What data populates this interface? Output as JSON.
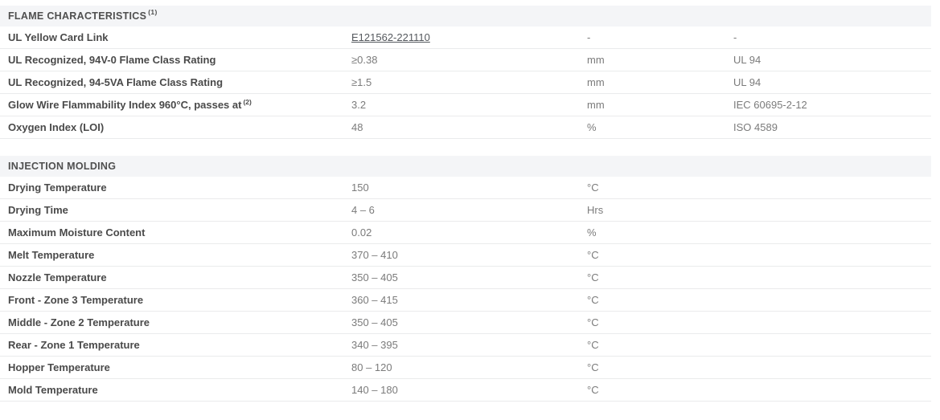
{
  "colors": {
    "section_header_bg": "#f4f5f7",
    "section_header_text": "#4f4f4f",
    "property_text": "#4a4a4a",
    "value_text": "#7b7b7b",
    "row_border": "#eaebec",
    "link_text": "#54585d"
  },
  "table": {
    "sections": [
      {
        "title": "FLAME CHARACTERISTICS",
        "superscript": "(1)",
        "rows": [
          {
            "property": "UL Yellow Card Link",
            "property_sup": "",
            "value": "E121562-221110",
            "value_is_link": true,
            "unit": "-",
            "standard": "-"
          },
          {
            "property": "UL Recognized, 94V-0 Flame Class Rating",
            "property_sup": "",
            "value": "≥0.38",
            "value_is_link": false,
            "unit": "mm",
            "standard": "UL 94"
          },
          {
            "property": "UL Recognized, 94-5VA Flame Class Rating",
            "property_sup": "",
            "value": "≥1.5",
            "value_is_link": false,
            "unit": "mm",
            "standard": "UL 94"
          },
          {
            "property": "Glow Wire Flammability Index 960°C, passes at",
            "property_sup": "(2)",
            "value": "3.2",
            "value_is_link": false,
            "unit": "mm",
            "standard": "IEC 60695-2-12"
          },
          {
            "property": "Oxygen Index (LOI)",
            "property_sup": "",
            "value": "48",
            "value_is_link": false,
            "unit": "%",
            "standard": "ISO 4589"
          }
        ]
      },
      {
        "title": "INJECTION MOLDING",
        "superscript": "",
        "rows": [
          {
            "property": "Drying Temperature",
            "property_sup": "",
            "value": "150",
            "value_is_link": false,
            "unit": "°C",
            "standard": ""
          },
          {
            "property": "Drying Time",
            "property_sup": "",
            "value": "4 – 6",
            "value_is_link": false,
            "unit": "Hrs",
            "standard": ""
          },
          {
            "property": "Maximum Moisture Content",
            "property_sup": "",
            "value": "0.02",
            "value_is_link": false,
            "unit": "%",
            "standard": ""
          },
          {
            "property": "Melt Temperature",
            "property_sup": "",
            "value": "370 – 410",
            "value_is_link": false,
            "unit": "°C",
            "standard": ""
          },
          {
            "property": "Nozzle Temperature",
            "property_sup": "",
            "value": "350 – 405",
            "value_is_link": false,
            "unit": "°C",
            "standard": ""
          },
          {
            "property": "Front - Zone 3 Temperature",
            "property_sup": "",
            "value": "360 – 415",
            "value_is_link": false,
            "unit": "°C",
            "standard": ""
          },
          {
            "property": "Middle - Zone 2 Temperature",
            "property_sup": "",
            "value": "350 – 405",
            "value_is_link": false,
            "unit": "°C",
            "standard": ""
          },
          {
            "property": "Rear - Zone 1 Temperature",
            "property_sup": "",
            "value": "340 – 395",
            "value_is_link": false,
            "unit": "°C",
            "standard": ""
          },
          {
            "property": "Hopper Temperature",
            "property_sup": "",
            "value": "80 – 120",
            "value_is_link": false,
            "unit": "°C",
            "standard": ""
          },
          {
            "property": "Mold Temperature",
            "property_sup": "",
            "value": "140 – 180",
            "value_is_link": false,
            "unit": "°C",
            "standard": ""
          }
        ]
      }
    ]
  }
}
